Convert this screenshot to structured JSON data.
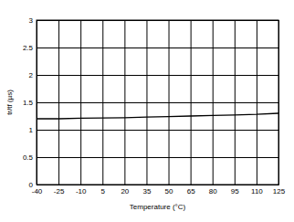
{
  "chart_data": {
    "type": "line",
    "x_label": "Temperature (°C)",
    "y_label": "tr/tf (µs)",
    "x": [
      -40,
      -25,
      -10,
      5,
      20,
      35,
      50,
      65,
      80,
      95,
      110,
      125
    ],
    "values": [
      1.2,
      1.2,
      1.21,
      1.215,
      1.22,
      1.23,
      1.24,
      1.25,
      1.26,
      1.27,
      1.28,
      1.3
    ],
    "color": "#000000",
    "xlim": [
      -40,
      125
    ],
    "xticks": [
      -40,
      -25,
      -10,
      5,
      20,
      35,
      50,
      65,
      80,
      95,
      110,
      125
    ],
    "ylim": [
      0,
      3
    ],
    "yticks": [
      0,
      0.5,
      1,
      1.5,
      2,
      2.5,
      3
    ],
    "grid": true
  }
}
